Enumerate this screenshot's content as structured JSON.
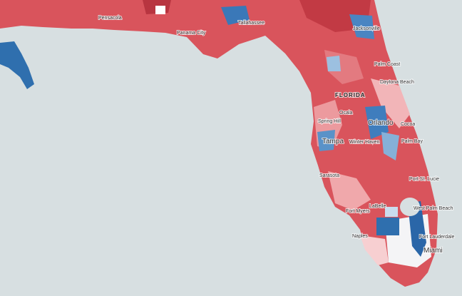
{
  "map": {
    "state_label": "FLORIDA",
    "cities": [
      {
        "name": "Pensacola"
      },
      {
        "name": "Panama City"
      },
      {
        "name": "Tallahassee"
      },
      {
        "name": "Jacksonville"
      },
      {
        "name": "Palm Coast"
      },
      {
        "name": "Daytona Beach"
      },
      {
        "name": "Ocala"
      },
      {
        "name": "Orlando"
      },
      {
        "name": "Cocoa"
      },
      {
        "name": "Spring Hill"
      },
      {
        "name": "Tampa"
      },
      {
        "name": "Winter Haven"
      },
      {
        "name": "Palm Bay"
      },
      {
        "name": "Sarasota"
      },
      {
        "name": "Port St. Lucie"
      },
      {
        "name": "LaBelle"
      },
      {
        "name": "Fort Myers"
      },
      {
        "name": "West Palm Beach"
      },
      {
        "name": "Naples"
      },
      {
        "name": "Fort Lauderdale"
      },
      {
        "name": "Miami"
      }
    ]
  }
}
